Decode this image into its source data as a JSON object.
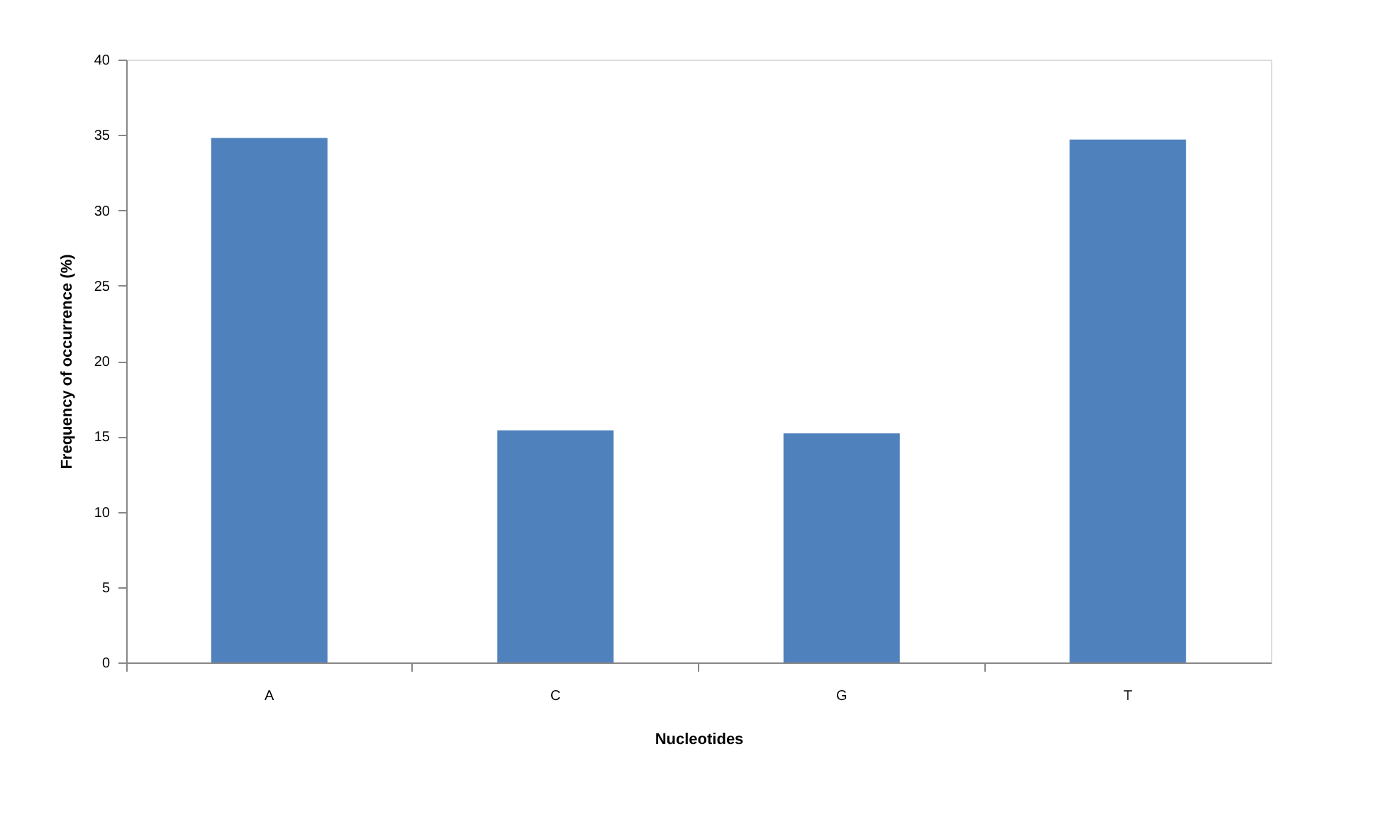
{
  "chart_data": {
    "type": "bar",
    "xlabel": "Nucleotides",
    "ylabel": "Frequency of occurrence  (%)",
    "categories": [
      "A",
      "C",
      "G",
      "T"
    ],
    "values": [
      34.8,
      15.4,
      15.2,
      34.7
    ],
    "color": "#4f81bd",
    "ylim": [
      0,
      40
    ],
    "yticks": [
      0,
      5,
      10,
      15,
      20,
      25,
      30,
      35,
      40
    ],
    "grid": false
  }
}
